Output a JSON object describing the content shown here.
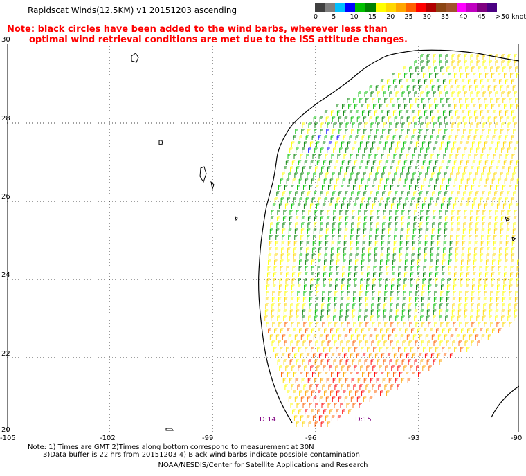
{
  "header": {
    "title": "Rapidscat Winds(12.5KM) v1 20151203 ascending",
    "note_line1": "Note: black circles have been added to the wind barbs, wherever less than",
    "note_line2": "optimal wind retrieval conditions are met due to the ISS attitude changes."
  },
  "color_scale": {
    "labels": [
      "0",
      "5",
      "10",
      "15",
      "20",
      "25",
      "30",
      "35",
      "40",
      "45",
      ">50 knots"
    ],
    "colors": [
      "#404040",
      "#808080",
      "#00bfff",
      "#0000ff",
      "#00c000",
      "#008000",
      "#ffff00",
      "#ffd700",
      "#ffa500",
      "#ff6000",
      "#ff0000",
      "#b00000",
      "#8b4513",
      "#a0522d",
      "#ff00ff",
      "#c000c0",
      "#800080",
      "#4b0082"
    ]
  },
  "map": {
    "lat_labels": [
      "30",
      "28",
      "26",
      "24",
      "22",
      "20"
    ],
    "lon_labels": [
      "-105",
      "-102",
      "-99",
      "-96",
      "-93",
      "-90"
    ],
    "swath_labels": [
      "D:14",
      "D:15"
    ]
  },
  "footer": {
    "line1": "Note: 1) Times are GMT 2)Times along bottom correspond to measurement at 30N",
    "line2": "3)Data buffer is 22 hrs from 20151203 4) Black wind barbs indicate possible contamination",
    "credit": "NOAA/NESDIS/Center for Satellite Applications and Research"
  }
}
